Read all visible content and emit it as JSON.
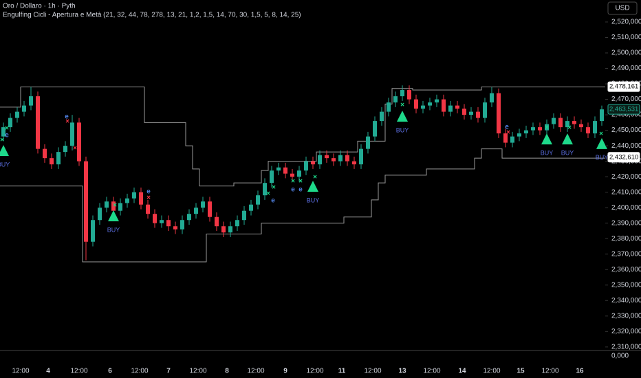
{
  "chart_data": {
    "type": "candlestick",
    "title": "Oro / Dollaro · 1h · Pyth",
    "indicator": "Engulfing Cicli - Apertura e Metà (21, 32, 44, 78, 278, 13, 21, 1,2, 1,5, 14, 70, 30, 1,5, 5, 8, 14, 25)",
    "currency": "USD",
    "up_color": "#22ab94",
    "down_color": "#f23645",
    "channel_color": "#9a9a9a",
    "buy_color": "#1ed98a",
    "buy_text_color": "#5b6ee1",
    "ylim": [
      2308600,
      2534200
    ],
    "yticks": [
      {
        "value": 2520000,
        "label": "2,520,000"
      },
      {
        "value": 2510000,
        "label": "2,510,000"
      },
      {
        "value": 2500000,
        "label": "2,500,000"
      },
      {
        "value": 2490000,
        "label": "2,490,000"
      },
      {
        "value": 2480000,
        "label": "2,480,000"
      },
      {
        "value": 2470000,
        "label": "2,470,000"
      },
      {
        "value": 2460000,
        "label": "2,460,000"
      },
      {
        "value": 2450000,
        "label": "2,450,000"
      },
      {
        "value": 2440000,
        "label": "2,440,000"
      },
      {
        "value": 2430000,
        "label": "2,430,000"
      },
      {
        "value": 2420000,
        "label": "2,420,000"
      },
      {
        "value": 2410000,
        "label": "2,410,000"
      },
      {
        "value": 2400000,
        "label": "2,400,000"
      },
      {
        "value": 2390000,
        "label": "2,390,000"
      },
      {
        "value": 2380000,
        "label": "2,380,000"
      },
      {
        "value": 2370000,
        "label": "2,370,000"
      },
      {
        "value": 2360000,
        "label": "2,360,000"
      },
      {
        "value": 2350000,
        "label": "2,350,000"
      },
      {
        "value": 2340000,
        "label": "2,340,000"
      },
      {
        "value": 2330000,
        "label": "2,330,000"
      },
      {
        "value": 2320000,
        "label": "2,320,000"
      },
      {
        "value": 2310000,
        "label": "2,310,000"
      }
    ],
    "lower_pane_label": {
      "value": 0,
      "label": "0,000"
    },
    "time_labels": [
      {
        "index": 2.5,
        "label": "12:00"
      },
      {
        "index": 6.5,
        "label": "4"
      },
      {
        "index": 11,
        "label": "12:00"
      },
      {
        "index": 15.5,
        "label": "6"
      },
      {
        "index": 19.8,
        "label": "12:00"
      },
      {
        "index": 24,
        "label": "7"
      },
      {
        "index": 28.3,
        "label": "12:00"
      },
      {
        "index": 32.5,
        "label": "8"
      },
      {
        "index": 36.7,
        "label": "12:00"
      },
      {
        "index": 41,
        "label": "9"
      },
      {
        "index": 45.3,
        "label": "12:00"
      },
      {
        "index": 49.2,
        "label": "11"
      },
      {
        "index": 53.7,
        "label": "12:00"
      },
      {
        "index": 58,
        "label": "13"
      },
      {
        "index": 62.3,
        "label": "12:00"
      },
      {
        "index": 66.7,
        "label": "14"
      },
      {
        "index": 71,
        "label": "12:00"
      },
      {
        "index": 75.2,
        "label": "15"
      },
      {
        "index": 79.5,
        "label": "12:00"
      },
      {
        "index": 83.8,
        "label": "16"
      }
    ],
    "open": [
      2446000,
      2452000,
      2458000,
      2462000,
      2466000,
      2472000,
      2438000,
      2432000,
      2428000,
      2436000,
      2440000,
      2455000,
      2430000,
      2378000,
      2392000,
      2400000,
      2404000,
      2398000,
      2403000,
      2406000,
      2410000,
      2402000,
      2396000,
      2390000,
      2392000,
      2388000,
      2386000,
      2392000,
      2396000,
      2400000,
      2404000,
      2394000,
      2388000,
      2384000,
      2388000,
      2392000,
      2398000,
      2402000,
      2408000,
      2416000,
      2424000,
      2426000,
      2422000,
      2420000,
      2424000,
      2430000,
      2428000,
      2434000,
      2432000,
      2430000,
      2434000,
      2430000,
      2428000,
      2438000,
      2446000,
      2456000,
      2462000,
      2468000,
      2472000,
      2476000,
      2470000,
      2464000,
      2466000,
      2468000,
      2470000,
      2462000,
      2466000,
      2464000,
      2460000,
      2462000,
      2458000,
      2468000,
      2474000,
      2448000,
      2442000,
      2446000,
      2448000,
      2450000,
      2452000,
      2450000,
      2454000,
      2458000,
      2452000,
      2456000,
      2454000,
      2452000,
      2448000,
      2456000
    ],
    "high": [
      2455000,
      2461000,
      2465000,
      2469000,
      2478000,
      2475000,
      2441000,
      2435000,
      2439000,
      2443000,
      2460000,
      2458000,
      2433000,
      2395000,
      2403000,
      2407000,
      2407000,
      2406000,
      2409000,
      2413000,
      2413000,
      2405000,
      2399000,
      2395000,
      2395000,
      2391000,
      2395000,
      2399000,
      2403000,
      2407000,
      2407000,
      2397000,
      2391000,
      2391000,
      2395000,
      2401000,
      2405000,
      2411000,
      2419000,
      2427000,
      2429000,
      2429000,
      2425000,
      2427000,
      2433000,
      2433000,
      2437000,
      2437000,
      2435000,
      2437000,
      2437000,
      2433000,
      2441000,
      2449000,
      2459000,
      2465000,
      2471000,
      2475000,
      2479000,
      2479000,
      2473000,
      2469000,
      2471000,
      2473000,
      2473000,
      2469000,
      2469000,
      2467000,
      2465000,
      2465000,
      2471000,
      2478000,
      2477000,
      2451000,
      2449000,
      2451000,
      2453000,
      2455000,
      2455000,
      2457000,
      2461000,
      2461000,
      2459000,
      2459000,
      2457000,
      2455000,
      2459000,
      2466000
    ],
    "low": [
      2443000,
      2449000,
      2455000,
      2459000,
      2463000,
      2435000,
      2429000,
      2425000,
      2425000,
      2433000,
      2437000,
      2427000,
      2366000,
      2375000,
      2389000,
      2397000,
      2395000,
      2395000,
      2400000,
      2403000,
      2399000,
      2393000,
      2387000,
      2387000,
      2385000,
      2383000,
      2383000,
      2389000,
      2393000,
      2397000,
      2391000,
      2385000,
      2381000,
      2381000,
      2385000,
      2389000,
      2395000,
      2399000,
      2405000,
      2413000,
      2421000,
      2419000,
      2417000,
      2417000,
      2421000,
      2425000,
      2425000,
      2429000,
      2427000,
      2427000,
      2427000,
      2425000,
      2425000,
      2435000,
      2443000,
      2453000,
      2459000,
      2465000,
      2469000,
      2467000,
      2461000,
      2461000,
      2463000,
      2465000,
      2459000,
      2459000,
      2461000,
      2457000,
      2457000,
      2455000,
      2455000,
      2465000,
      2445000,
      2439000,
      2439000,
      2443000,
      2445000,
      2447000,
      2447000,
      2447000,
      2451000,
      2449000,
      2449000,
      2451000,
      2449000,
      2445000,
      2445000,
      2453000
    ],
    "close": [
      2452000,
      2458000,
      2462000,
      2466000,
      2472000,
      2438000,
      2432000,
      2428000,
      2436000,
      2440000,
      2455000,
      2430000,
      2378000,
      2392000,
      2400000,
      2404000,
      2398000,
      2403000,
      2406000,
      2410000,
      2402000,
      2396000,
      2390000,
      2392000,
      2388000,
      2386000,
      2392000,
      2396000,
      2400000,
      2404000,
      2394000,
      2388000,
      2384000,
      2388000,
      2392000,
      2398000,
      2402000,
      2408000,
      2416000,
      2424000,
      2426000,
      2422000,
      2420000,
      2424000,
      2430000,
      2428000,
      2434000,
      2432000,
      2430000,
      2434000,
      2430000,
      2428000,
      2438000,
      2446000,
      2456000,
      2462000,
      2468000,
      2472000,
      2476000,
      2470000,
      2464000,
      2466000,
      2468000,
      2470000,
      2462000,
      2466000,
      2464000,
      2460000,
      2462000,
      2458000,
      2468000,
      2474000,
      2448000,
      2442000,
      2446000,
      2448000,
      2450000,
      2452000,
      2450000,
      2454000,
      2458000,
      2452000,
      2456000,
      2454000,
      2452000,
      2448000,
      2456000,
      2463531
    ],
    "upper_channel": [
      2465000,
      2465000,
      2465000,
      2478000,
      2478000,
      2478000,
      2478000,
      2478000,
      2478000,
      2478000,
      2478000,
      2478000,
      2478000,
      2478000,
      2478000,
      2478000,
      2478000,
      2478000,
      2478000,
      2478000,
      2478000,
      2455000,
      2455000,
      2455000,
      2455000,
      2455000,
      2455000,
      2440000,
      2425000,
      2414000,
      2414000,
      2414000,
      2414000,
      2414000,
      2416000,
      2416000,
      2416000,
      2416000,
      2424000,
      2430000,
      2430000,
      2430000,
      2430000,
      2430000,
      2430000,
      2430000,
      2436000,
      2436000,
      2436000,
      2436000,
      2436000,
      2436000,
      2443000,
      2443000,
      2443000,
      2443000,
      2467000,
      2477000,
      2477000,
      2477000,
      2476000,
      2476000,
      2476000,
      2476000,
      2476000,
      2476000,
      2476000,
      2476000,
      2476000,
      2476000,
      2478000,
      2478000,
      2478000,
      2478000,
      2478000,
      2478000,
      2478000,
      2478000,
      2478000,
      2478000,
      2478000,
      2478000,
      2478000,
      2478000,
      2478000,
      2478000,
      2478000,
      2478000
    ],
    "lower_channel": [
      2414000,
      2414000,
      2414000,
      2414000,
      2414000,
      2414000,
      2414000,
      2414000,
      2414000,
      2414000,
      2414000,
      2414000,
      2365000,
      2365000,
      2365000,
      2365000,
      2365000,
      2365000,
      2365000,
      2365000,
      2365000,
      2365000,
      2365000,
      2365000,
      2365000,
      2365000,
      2365000,
      2365000,
      2365000,
      2365000,
      2383000,
      2383000,
      2383000,
      2383000,
      2383000,
      2383000,
      2383000,
      2383000,
      2390000,
      2390000,
      2390000,
      2390000,
      2390000,
      2390000,
      2390000,
      2390000,
      2390000,
      2390000,
      2390000,
      2390000,
      2394000,
      2394000,
      2394000,
      2394000,
      2405000,
      2416000,
      2421000,
      2421000,
      2421000,
      2421000,
      2421000,
      2421000,
      2425000,
      2425000,
      2425000,
      2425000,
      2425000,
      2425000,
      2425000,
      2432000,
      2438000,
      2438000,
      2438000,
      2432000,
      2432000,
      2432000,
      2432000,
      2432000,
      2432000,
      2432000,
      2432000,
      2432000,
      2432000,
      2432000,
      2432000,
      2432000,
      2432000,
      2432000
    ],
    "buy_signals": [
      {
        "index": 0,
        "price": 2436500,
        "label": "BUY"
      },
      {
        "index": 16,
        "price": 2394300,
        "label": "BUY"
      },
      {
        "index": 45,
        "price": 2413400,
        "label": "BUY"
      },
      {
        "index": 58,
        "price": 2458700,
        "label": "BUY"
      },
      {
        "index": 79,
        "price": 2444000,
        "label": "BUY"
      },
      {
        "index": 82,
        "price": 2444000,
        "label": "BUY"
      },
      {
        "index": 87,
        "price": 2441000,
        "label": "BUY"
      }
    ],
    "signal_markers": [
      {
        "index": 9.2,
        "price": 2458700,
        "label": "e",
        "color": "#4f7fe0"
      },
      {
        "index": 9.3,
        "price": 2455600,
        "label": "×",
        "color": "#f23645"
      },
      {
        "index": 10.4,
        "price": 2438300,
        "label": "×",
        "color": "#f23645"
      },
      {
        "index": 16.2,
        "price": 2401400,
        "label": "×",
        "color": "#1ed98a"
      },
      {
        "index": 21.1,
        "price": 2410300,
        "label": "e",
        "color": "#4f7fe0"
      },
      {
        "index": 21.1,
        "price": 2406300,
        "label": "×",
        "color": "#f23645"
      },
      {
        "index": 0.5,
        "price": 2451200,
        "label": "×",
        "color": "#1ed98a"
      },
      {
        "index": 0.5,
        "price": 2446700,
        "label": "e",
        "color": "#4f7fe0"
      },
      {
        "index": -0.2,
        "price": 2443600,
        "label": "×",
        "color": "#1ed98a"
      },
      {
        "index": 38.5,
        "price": 2409000,
        "label": "×",
        "color": "#1ed98a"
      },
      {
        "index": 39.2,
        "price": 2404500,
        "label": "e",
        "color": "#4f7fe0"
      },
      {
        "index": 39.3,
        "price": 2413000,
        "label": "×",
        "color": "#1ed98a"
      },
      {
        "index": 42.1,
        "price": 2417000,
        "label": "×",
        "color": "#1ed98a"
      },
      {
        "index": 42.1,
        "price": 2411700,
        "label": "e",
        "color": "#4f7fe0"
      },
      {
        "index": 43.2,
        "price": 2417000,
        "label": "×",
        "color": "#1ed98a"
      },
      {
        "index": 43.2,
        "price": 2411700,
        "label": "e",
        "color": "#4f7fe0"
      },
      {
        "index": 45.3,
        "price": 2419600,
        "label": "×",
        "color": "#1ed98a"
      },
      {
        "index": 58,
        "price": 2466300,
        "label": "×",
        "color": "#1ed98a"
      },
      {
        "index": 73.2,
        "price": 2452000,
        "label": "e",
        "color": "#4f7fe0"
      },
      {
        "index": 73.4,
        "price": 2448500,
        "label": "×",
        "color": "#f23645"
      },
      {
        "index": 79,
        "price": 2451600,
        "label": "×",
        "color": "#1ed98a"
      },
      {
        "index": 82.3,
        "price": 2451600,
        "label": "×",
        "color": "#1ed98a"
      },
      {
        "index": 86.9,
        "price": 2447600,
        "label": "×",
        "color": "#1ed98a"
      }
    ],
    "price_labels": [
      {
        "value": 2478161,
        "label": "2,478,161",
        "style": "box"
      },
      {
        "value": 2463531,
        "label": "2,463,531",
        "style": "last"
      },
      {
        "value": 2432610,
        "label": "2,432,610",
        "style": "box"
      }
    ]
  }
}
